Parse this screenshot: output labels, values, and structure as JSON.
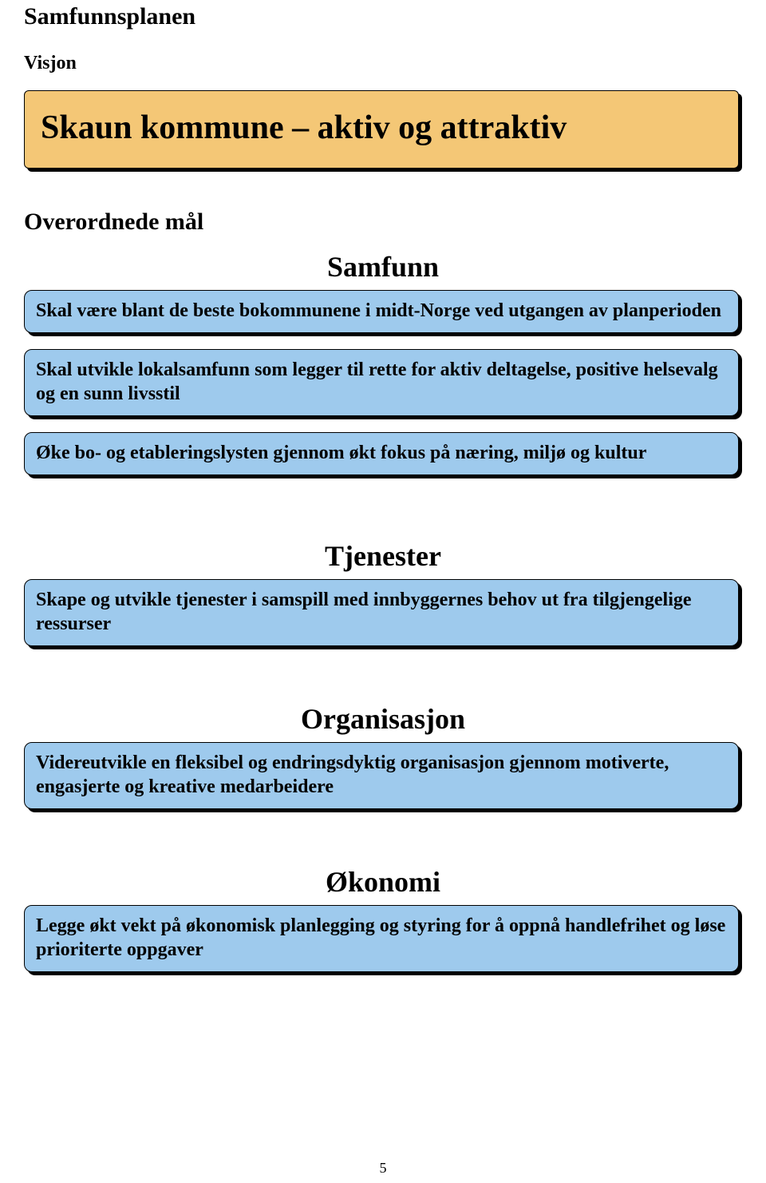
{
  "page": {
    "title": "Samfunnsplanen",
    "subtitle": "Visjon",
    "overordnede": "Overordnede mål",
    "page_number": "5"
  },
  "banner": {
    "text": "Skaun kommune – aktiv og attraktiv",
    "bg_color": "#f4c776",
    "border_color": "#000000",
    "text_color": "#000000"
  },
  "box_style": {
    "bg_color": "#9ecaed",
    "border_color": "#000000",
    "text_color": "#000000"
  },
  "sections": {
    "samfunn": {
      "heading": "Samfunn",
      "boxes": [
        "Skal være blant de beste bokommunene i midt-Norge ved utgangen av planperioden",
        "Skal utvikle lokalsamfunn som legger til rette for aktiv deltagelse, positive helsevalg og en sunn livsstil",
        "Øke bo- og etableringslysten gjennom økt fokus på næring, miljø og kultur"
      ]
    },
    "tjenester": {
      "heading": "Tjenester",
      "boxes": [
        "Skape og utvikle tjenester i samspill med innbyggernes behov ut fra tilgjengelige ressurser"
      ]
    },
    "organisasjon": {
      "heading": "Organisasjon",
      "boxes": [
        "Videreutvikle en fleksibel og endringsdyktig organisasjon gjennom motiverte, engasjerte og kreative medarbeidere"
      ]
    },
    "okonomi": {
      "heading": "Økonomi",
      "boxes": [
        "Legge økt vekt på økonomisk planlegging og styring for å oppnå handlefrihet og løse prioriterte oppgaver"
      ]
    }
  }
}
